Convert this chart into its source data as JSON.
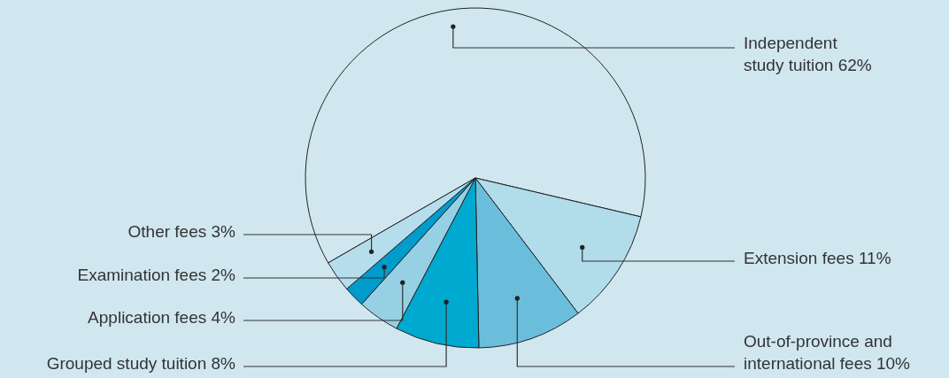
{
  "chart_data": {
    "type": "pie",
    "categories": [
      "Independent study tuition 62%",
      "Extension fees 11%",
      "Out-of-province and international fees 10%",
      "Grouped study tuition 8%",
      "Application fees 4%",
      "Examination fees 2%",
      "Other fees 3%"
    ],
    "values": [
      62,
      11,
      10,
      8,
      4,
      2,
      3
    ],
    "colors": [
      "#d0e7f0",
      "#b1dcea",
      "#6bbedb",
      "#00a9cf",
      "#96d0e4",
      "#009ccb",
      "#b5ddeb"
    ]
  }
}
